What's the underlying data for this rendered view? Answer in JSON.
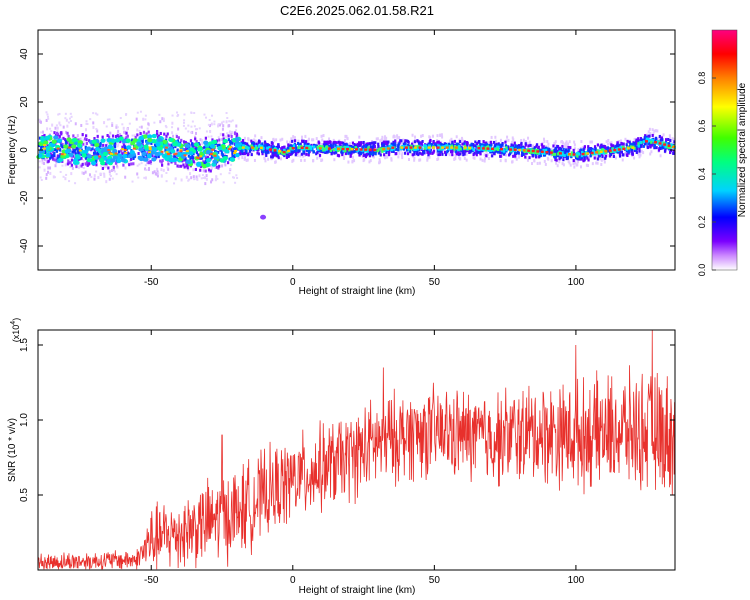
{
  "title": "C2E6.2025.062.01.58.R21",
  "chart_data": [
    {
      "type": "heatmap",
      "xlabel": "Height of straight line (km)",
      "ylabel": "Frequency (Hz)",
      "xlim": [
        -90,
        135
      ],
      "ylim": [
        -50,
        50
      ],
      "xticks": [
        -50,
        0,
        50,
        100
      ],
      "yticks": [
        -40,
        -20,
        0,
        20,
        40
      ],
      "colorbar": {
        "label": "Normalized spectral amplitude",
        "range": [
          0,
          1
        ],
        "ticks": [
          "0.0",
          "0.2",
          "0.4",
          "0.6",
          "0.8"
        ]
      },
      "ridge_frequency_hz": [
        {
          "x": -90,
          "y": 1
        },
        {
          "x": -70,
          "y": -1
        },
        {
          "x": -50,
          "y": 1
        },
        {
          "x": -30,
          "y": -2
        },
        {
          "x": -20,
          "y": 1
        },
        {
          "x": -12,
          "y": 1
        },
        {
          "x": -3,
          "y": -1
        },
        {
          "x": 0,
          "y": 1
        },
        {
          "x": 30,
          "y": 0
        },
        {
          "x": 35,
          "y": 1
        },
        {
          "x": 60,
          "y": 1
        },
        {
          "x": 80,
          "y": 0
        },
        {
          "x": 100,
          "y": -2
        },
        {
          "x": 120,
          "y": 1
        },
        {
          "x": 125,
          "y": 4
        },
        {
          "x": 135,
          "y": 1
        }
      ]
    },
    {
      "type": "line",
      "xlabel": "Height of straight line (km)",
      "ylabel": "SNR (10 * v/v)",
      "yunit": "(x10",
      "yunit_exponent": "4",
      "yunit_close": ")",
      "xlim": [
        -90,
        135
      ],
      "ylim": [
        0,
        1.6
      ],
      "xticks": [
        -50,
        0,
        50,
        100
      ],
      "yticks": [
        "0.5",
        "1.0",
        "1.5"
      ],
      "series_color": "#e8302c",
      "trend": [
        {
          "x": -90,
          "y": 0.05
        },
        {
          "x": -70,
          "y": 0.06
        },
        {
          "x": -55,
          "y": 0.07
        },
        {
          "x": -50,
          "y": 0.2
        },
        {
          "x": -40,
          "y": 0.25
        },
        {
          "x": -30,
          "y": 0.32
        },
        {
          "x": -20,
          "y": 0.38
        },
        {
          "x": -10,
          "y": 0.5
        },
        {
          "x": 0,
          "y": 0.6
        },
        {
          "x": 10,
          "y": 0.68
        },
        {
          "x": 20,
          "y": 0.75
        },
        {
          "x": 30,
          "y": 0.85
        },
        {
          "x": 40,
          "y": 0.9
        },
        {
          "x": 50,
          "y": 0.92
        },
        {
          "x": 60,
          "y": 0.9
        },
        {
          "x": 70,
          "y": 0.88
        },
        {
          "x": 80,
          "y": 0.9
        },
        {
          "x": 90,
          "y": 0.92
        },
        {
          "x": 100,
          "y": 0.9
        },
        {
          "x": 110,
          "y": 0.92
        },
        {
          "x": 120,
          "y": 0.93
        },
        {
          "x": 135,
          "y": 0.9
        }
      ],
      "noise_amplitude": [
        {
          "x": -90,
          "y": 0.06
        },
        {
          "x": -55,
          "y": 0.07
        },
        {
          "x": -50,
          "y": 0.22
        },
        {
          "x": -20,
          "y": 0.3
        },
        {
          "x": 0,
          "y": 0.28
        },
        {
          "x": 30,
          "y": 0.3
        },
        {
          "x": 60,
          "y": 0.3
        },
        {
          "x": 100,
          "y": 0.35
        },
        {
          "x": 135,
          "y": 0.4
        }
      ],
      "peaks": [
        {
          "x": -25,
          "y": 0.9
        },
        {
          "x": 32,
          "y": 1.35
        },
        {
          "x": 100,
          "y": 1.5
        },
        {
          "x": 127,
          "y": 1.6
        }
      ]
    }
  ]
}
